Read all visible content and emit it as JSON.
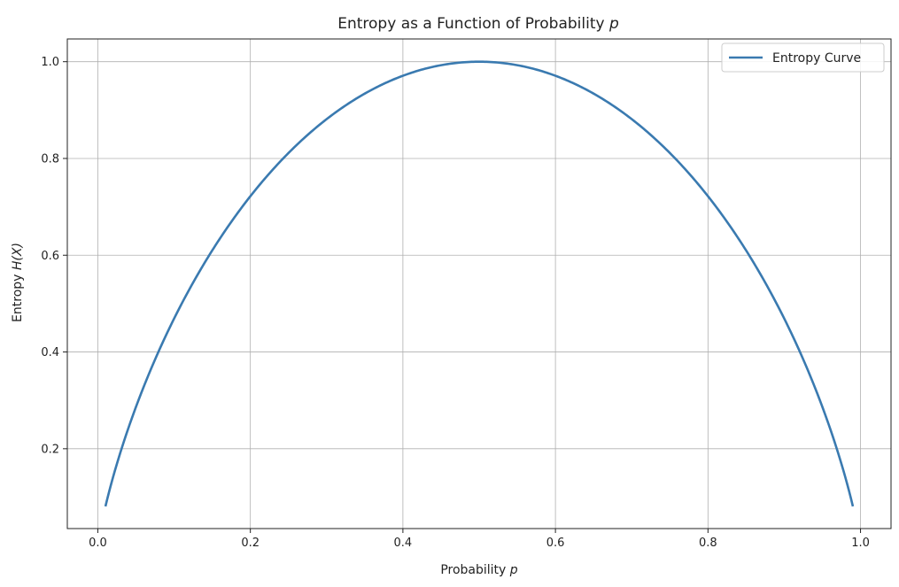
{
  "chart_data": {
    "type": "line",
    "title": "Entropy as a Function of Probability",
    "title_symbol": "p",
    "xlabel": "Probability",
    "xlabel_symbol": "p",
    "ylabel": "Entropy",
    "ylabel_symbol": "H(X)",
    "xlim": [
      -0.04,
      1.04
    ],
    "ylim": [
      0.035,
      1.047
    ],
    "xticks": [
      0.0,
      0.2,
      0.4,
      0.6,
      0.8,
      1.0
    ],
    "xtick_labels": [
      "0.0",
      "0.2",
      "0.4",
      "0.6",
      "0.8",
      "1.0"
    ],
    "yticks": [
      0.2,
      0.4,
      0.6,
      0.8,
      1.0
    ],
    "ytick_labels": [
      "0.2",
      "0.4",
      "0.6",
      "0.8",
      "1.0"
    ],
    "grid": true,
    "legend_position": "top-right",
    "series": [
      {
        "name": "Entropy Curve",
        "color": "#3a7ab0",
        "function": "binary_entropy",
        "x_range": [
          0.01,
          0.99
        ],
        "x": [
          0.01,
          0.05,
          0.1,
          0.15,
          0.2,
          0.25,
          0.3,
          0.35,
          0.4,
          0.45,
          0.5,
          0.55,
          0.6,
          0.65,
          0.7,
          0.75,
          0.8,
          0.85,
          0.9,
          0.95,
          0.99
        ],
        "y": [
          0.081,
          0.286,
          0.469,
          0.61,
          0.722,
          0.811,
          0.881,
          0.934,
          0.971,
          0.993,
          1.0,
          0.993,
          0.971,
          0.934,
          0.881,
          0.811,
          0.722,
          0.61,
          0.469,
          0.286,
          0.081
        ]
      }
    ]
  }
}
